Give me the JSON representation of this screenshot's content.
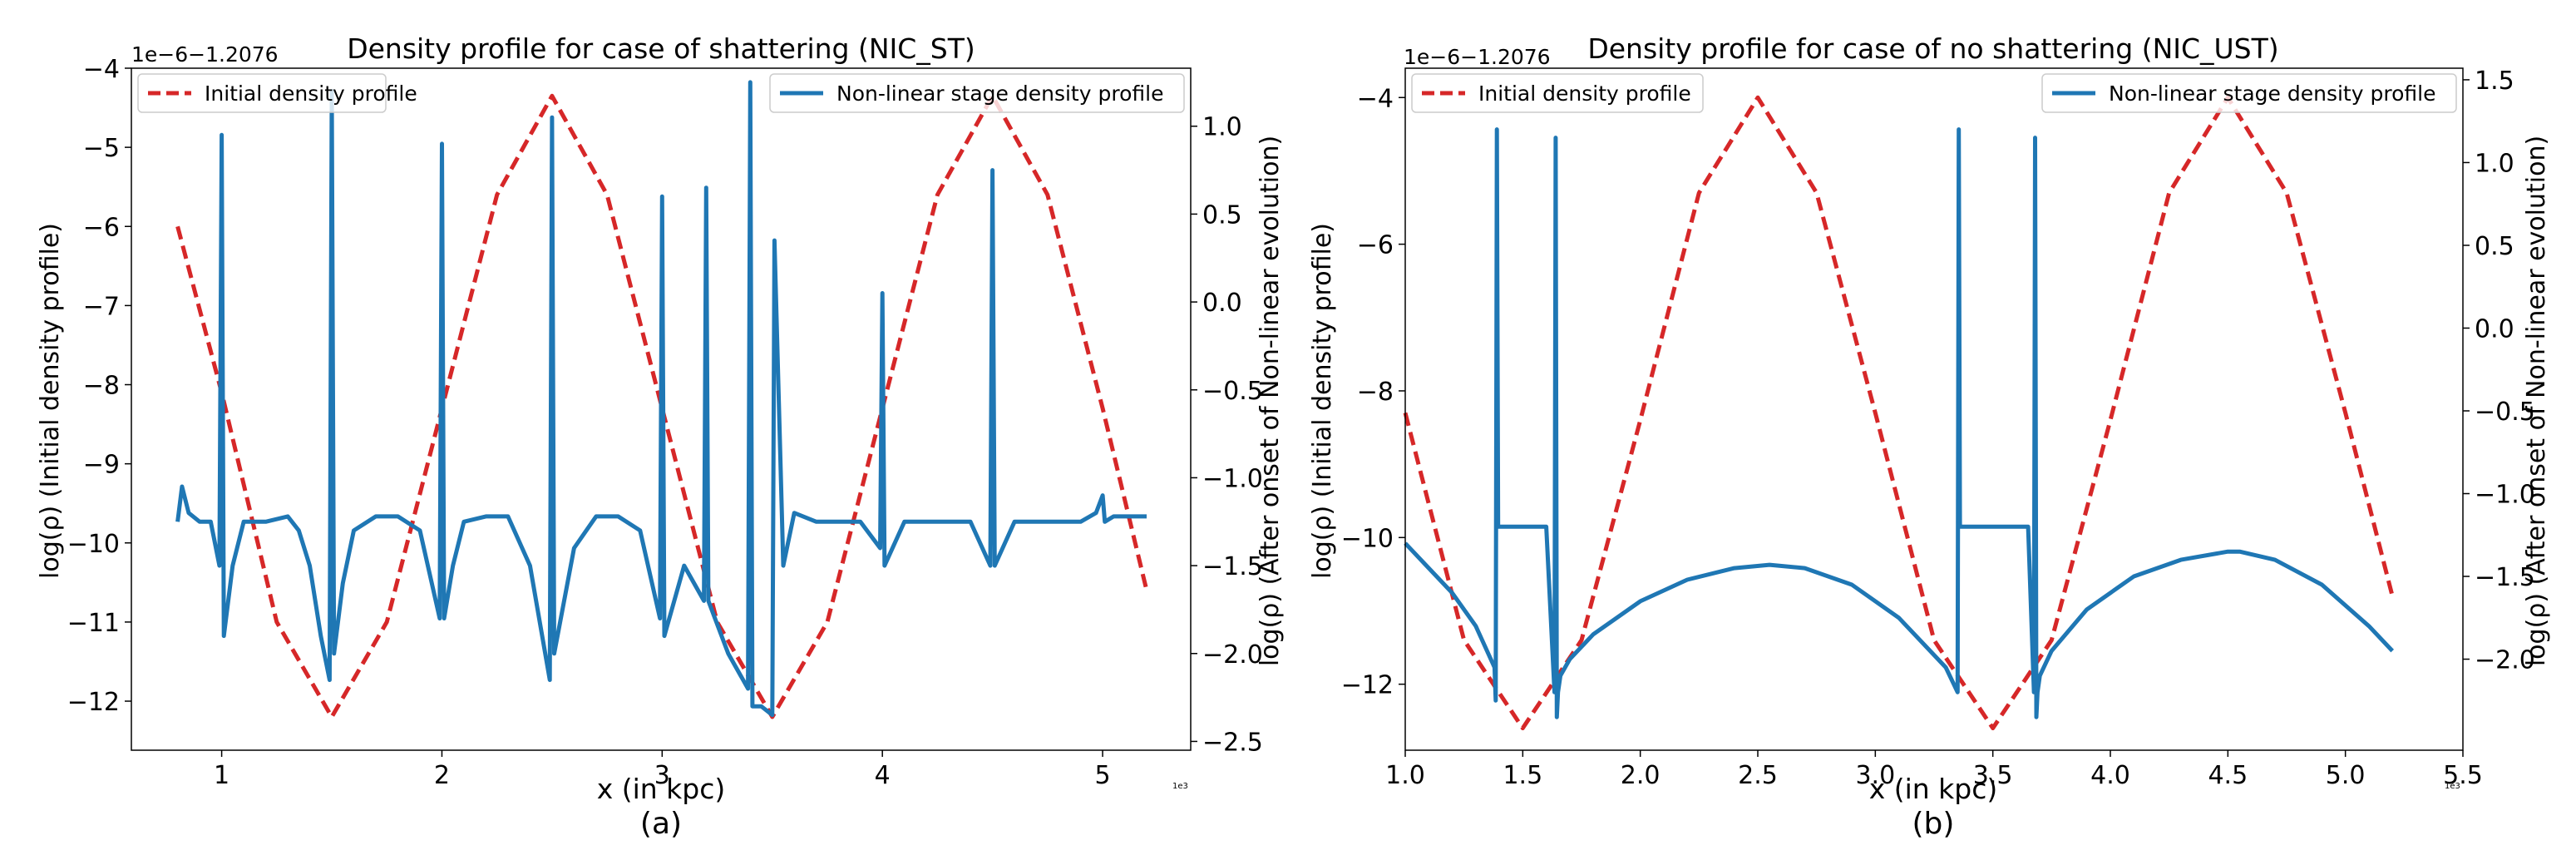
{
  "chart_data": [
    {
      "type": "line",
      "title": "Density profile for case of shattering (NIC_ST)",
      "xlabel": "x (in kpc)",
      "sublabel": "(a)",
      "ylabel_left": "log(ρ) (Initial density profile)",
      "ylabel_right": "log(ρ) (After onset of Non-linear evolution)",
      "y_offset_text": "1e−6−1.2076",
      "x_exponent_text": "1e3",
      "xlim": [
        0.59,
        5.4
      ],
      "ylim_left": [
        -12.62,
        -4.0
      ],
      "ylim_right": [
        -2.55,
        1.33
      ],
      "x_ticks": [
        1,
        2,
        3,
        4,
        5
      ],
      "x_tick_labels": [
        "1",
        "2",
        "3",
        "4",
        "5"
      ],
      "y_left_ticks": [
        -4,
        -5,
        -6,
        -7,
        -8,
        -9,
        -10,
        -11,
        -12
      ],
      "y_left_tick_labels": [
        "−4",
        "−5",
        "−6",
        "−7",
        "−8",
        "−9",
        "−10",
        "−11",
        "−12"
      ],
      "y_right_ticks": [
        1.0,
        0.5,
        0.0,
        -0.5,
        -1.0,
        -1.5,
        -2.0,
        -2.5
      ],
      "y_right_tick_labels": [
        "1.0",
        "0.5",
        "0.0",
        "−0.5",
        "−1.0",
        "−1.5",
        "−2.0",
        "−2.5"
      ],
      "legend_left": "Initial density profile",
      "legend_right": "Non-linear stage density profile",
      "legend_placement": [
        "top-left",
        "top-right"
      ],
      "colors": {
        "initial": "#d62728",
        "nonlinear": "#1f77b4"
      },
      "series": [
        {
          "name": "Initial density profile",
          "axis": "left",
          "style": "dashed",
          "x": [
            0.8,
            1.0,
            1.25,
            1.5,
            1.75,
            2.0,
            2.25,
            2.5,
            2.75,
            3.0,
            3.25,
            3.5,
            3.75,
            4.0,
            4.25,
            4.5,
            4.75,
            5.0,
            5.2
          ],
          "y": [
            -6.0,
            -8.1,
            -11.0,
            -12.2,
            -11.0,
            -8.3,
            -5.6,
            -4.35,
            -5.6,
            -8.3,
            -11.0,
            -12.2,
            -11.0,
            -8.3,
            -5.6,
            -4.35,
            -5.6,
            -8.3,
            -10.6
          ]
        },
        {
          "name": "Non-linear stage density profile",
          "axis": "right",
          "style": "solid",
          "x": [
            0.8,
            0.82,
            0.85,
            0.9,
            0.95,
            0.99,
            1.0,
            1.01,
            1.05,
            1.1,
            1.2,
            1.3,
            1.35,
            1.4,
            1.45,
            1.49,
            1.5,
            1.51,
            1.55,
            1.6,
            1.7,
            1.8,
            1.9,
            1.99,
            2.0,
            2.01,
            2.05,
            2.1,
            2.2,
            2.3,
            2.4,
            2.49,
            2.5,
            2.51,
            2.6,
            2.7,
            2.8,
            2.9,
            2.99,
            3.0,
            3.01,
            3.1,
            3.19,
            3.2,
            3.21,
            3.3,
            3.39,
            3.4,
            3.41,
            3.45,
            3.5,
            3.51,
            3.55,
            3.6,
            3.7,
            3.8,
            3.9,
            3.99,
            4.0,
            4.01,
            4.1,
            4.2,
            4.3,
            4.4,
            4.49,
            4.5,
            4.51,
            4.6,
            4.7,
            4.8,
            4.9,
            4.97,
            5.0,
            5.01,
            5.05,
            5.1,
            5.2
          ],
          "y": [
            -1.25,
            -1.05,
            -1.2,
            -1.25,
            -1.25,
            -1.5,
            0.95,
            -1.9,
            -1.5,
            -1.25,
            -1.25,
            -1.22,
            -1.3,
            -1.5,
            -1.9,
            -2.15,
            1.2,
            -2.0,
            -1.6,
            -1.3,
            -1.22,
            -1.22,
            -1.3,
            -1.8,
            0.9,
            -1.8,
            -1.5,
            -1.25,
            -1.22,
            -1.22,
            -1.5,
            -2.15,
            1.05,
            -2.0,
            -1.4,
            -1.22,
            -1.22,
            -1.3,
            -1.8,
            0.6,
            -1.9,
            -1.5,
            -1.7,
            0.65,
            -1.7,
            -2.0,
            -2.2,
            1.25,
            -2.3,
            -2.3,
            -2.35,
            0.35,
            -1.5,
            -1.2,
            -1.25,
            -1.25,
            -1.25,
            -1.4,
            0.05,
            -1.5,
            -1.25,
            -1.25,
            -1.25,
            -1.25,
            -1.5,
            0.75,
            -1.5,
            -1.25,
            -1.25,
            -1.25,
            -1.25,
            -1.2,
            -1.1,
            -1.25,
            -1.22,
            -1.22,
            -1.22
          ]
        }
      ]
    },
    {
      "type": "line",
      "title": "Density profile for case of no shattering (NIC_UST)",
      "xlabel": "x (in kpc)",
      "sublabel": "(b)",
      "ylabel_left": "log(ρ) (Initial density profile)",
      "ylabel_right": "log(ρ) (After onset of Non-linear evolution)",
      "y_offset_text": "1e−6−1.2076",
      "x_exponent_text": "1e3",
      "xlim": [
        1.0,
        5.5
      ],
      "ylim_left": [
        -12.9,
        -3.6
      ],
      "ylim_right": [
        -2.55,
        1.57
      ],
      "x_ticks": [
        1.0,
        1.5,
        2.0,
        2.5,
        3.0,
        3.5,
        4.0,
        4.5,
        5.0,
        5.5
      ],
      "x_tick_labels": [
        "1.0",
        "1.5",
        "2.0",
        "2.5",
        "3.0",
        "3.5",
        "4.0",
        "4.5",
        "5.0",
        "5.5"
      ],
      "y_left_ticks": [
        -4,
        -6,
        -8,
        -10,
        -12
      ],
      "y_left_tick_labels": [
        "−4",
        "−6",
        "−8",
        "−10",
        "−12"
      ],
      "y_right_ticks": [
        1.5,
        1.0,
        0.5,
        0.0,
        -0.5,
        -1.0,
        -1.5,
        -2.0
      ],
      "y_right_tick_labels": [
        "1.5",
        "1.0",
        "0.5",
        "0.0",
        "−0.5",
        "−1.0",
        "−1.5",
        "−2.0"
      ],
      "legend_left": "Initial density profile",
      "legend_right": "Non-linear stage density profile",
      "legend_placement": [
        "top-left",
        "top-right"
      ],
      "colors": {
        "initial": "#d62728",
        "nonlinear": "#1f77b4"
      },
      "series": [
        {
          "name": "Initial density profile",
          "axis": "left",
          "style": "dashed",
          "x": [
            1.0,
            1.25,
            1.5,
            1.75,
            2.0,
            2.25,
            2.5,
            2.75,
            3.0,
            3.25,
            3.5,
            3.75,
            4.0,
            4.25,
            4.5,
            4.75,
            5.0,
            5.2
          ],
          "y": [
            -8.3,
            -11.4,
            -12.6,
            -11.4,
            -8.4,
            -5.3,
            -4.0,
            -5.3,
            -8.3,
            -11.4,
            -12.6,
            -11.4,
            -8.4,
            -5.3,
            -4.0,
            -5.3,
            -8.3,
            -10.8
          ]
        },
        {
          "name": "Non-linear stage density profile",
          "axis": "right",
          "style": "solid",
          "x": [
            1.0,
            1.1,
            1.2,
            1.3,
            1.38,
            1.385,
            1.39,
            1.395,
            1.4,
            1.5,
            1.6,
            1.635,
            1.64,
            1.645,
            1.65,
            1.66,
            1.7,
            1.8,
            2.0,
            2.2,
            2.4,
            2.55,
            2.7,
            2.9,
            3.1,
            3.3,
            3.35,
            3.355,
            3.36,
            3.365,
            3.37,
            3.5,
            3.65,
            3.675,
            3.68,
            3.685,
            3.69,
            3.7,
            3.75,
            3.9,
            4.1,
            4.3,
            4.5,
            4.55,
            4.7,
            4.9,
            5.1,
            5.2
          ],
          "y": [
            -1.3,
            -1.45,
            -1.6,
            -1.8,
            -2.05,
            -2.25,
            1.2,
            -1.2,
            -1.2,
            -1.2,
            -1.2,
            -2.2,
            1.15,
            -2.35,
            -2.2,
            -2.1,
            -2.0,
            -1.85,
            -1.65,
            -1.52,
            -1.45,
            -1.43,
            -1.45,
            -1.55,
            -1.75,
            -2.05,
            -2.2,
            1.2,
            -1.2,
            -1.2,
            -1.2,
            -1.2,
            -1.2,
            -2.2,
            1.15,
            -2.35,
            -2.2,
            -2.1,
            -1.95,
            -1.7,
            -1.5,
            -1.4,
            -1.35,
            -1.35,
            -1.4,
            -1.55,
            -1.8,
            -1.95
          ]
        }
      ]
    }
  ]
}
